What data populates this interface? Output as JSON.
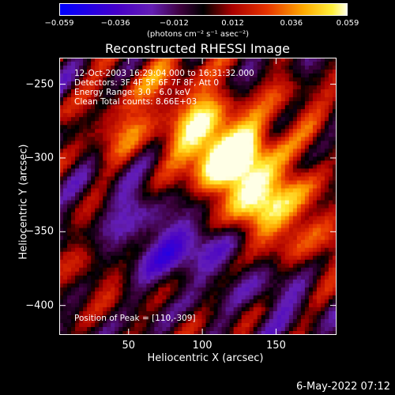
{
  "colorbar": {
    "tick_labels": [
      "−0.059",
      "−0.036",
      "−0.012",
      "0.012",
      "0.036",
      "0.059"
    ],
    "tick_values": [
      -0.059,
      -0.036,
      -0.012,
      0.012,
      0.036,
      0.059
    ],
    "units_label": "(photons cm⁻² s⁻¹ asec⁻²)"
  },
  "title": "Reconstructed RHESSI Image",
  "annotations": {
    "time_range": "12-Oct-2003 16:29:04.000 to 16:31:32.000",
    "detectors": "Detectors: 3F 4F 5F 6F 7F 8F, Att 0",
    "energy_range": "Energy Range: 3.0 - 6.0 keV",
    "clean_counts": "Clean    Total counts: 8.66E+03",
    "peak_position": "Position of Peak = [110,-309]"
  },
  "axes": {
    "x_label": "Heliocentric X (arcsec)",
    "y_label": "Heliocentric Y (arcsec)",
    "x_tick_labels": [
      "50",
      "100",
      "150"
    ],
    "x_tick_values": [
      50,
      100,
      150
    ],
    "y_tick_labels": [
      "−250",
      "−300",
      "−350",
      "−400"
    ],
    "y_tick_values": [
      -250,
      -300,
      -350,
      -400
    ],
    "x_range": [
      3,
      191
    ],
    "y_range": [
      -232,
      -420
    ]
  },
  "footer": {
    "date": "6-May-2022 07:12"
  }
}
